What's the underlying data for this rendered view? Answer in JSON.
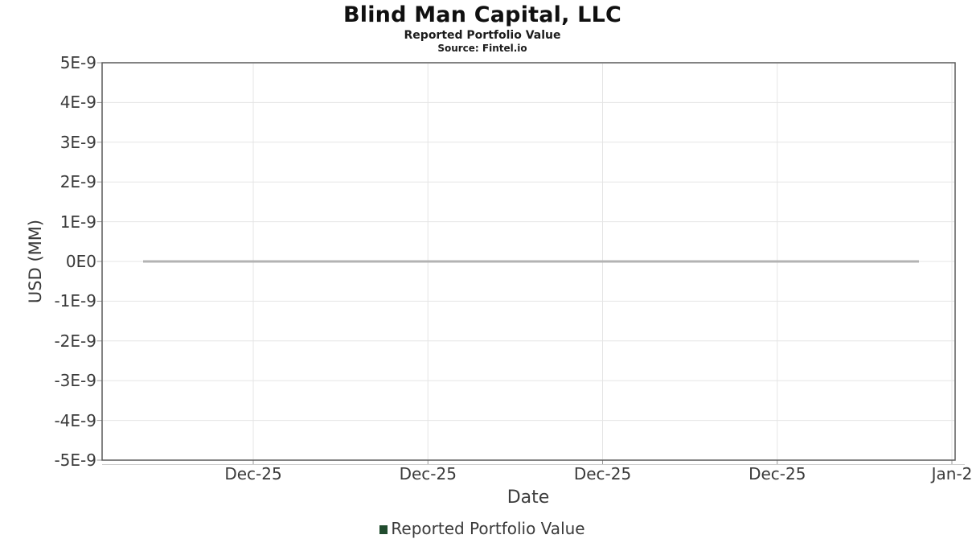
{
  "header": {
    "title": "Blind Man Capital, LLC",
    "subtitle": "Reported Portfolio Value",
    "source": "Source: Fintel.io"
  },
  "legend": {
    "label": "Reported Portfolio Value",
    "marker_color": "#214c2e"
  },
  "colors": {
    "grid": "#e5e5e5",
    "plot_border": "#5a5a5a",
    "tick": "#999999",
    "axis_line_light": "#cccccc",
    "axis_text": "#3a3a3a",
    "series_line": "#b3b3b3",
    "legend_green": "#214c2e"
  },
  "chart_data": {
    "type": "line",
    "title": "Blind Man Capital, LLC",
    "subtitle": "Reported Portfolio Value",
    "source_note": "Source: Fintel.io",
    "xlabel": "Date",
    "ylabel": "USD (MM)",
    "x_tick_labels": [
      "Dec-25",
      "Dec-25",
      "Dec-25",
      "Dec-25",
      "Jan-2"
    ],
    "y_tick_labels": [
      "5E-9",
      "4E-9",
      "3E-9",
      "2E-9",
      "1E-9",
      "0E0",
      "-1E-9",
      "-2E-9",
      "-3E-9",
      "-4E-9",
      "-5E-9"
    ],
    "ylim": [
      -5e-09,
      5e-09
    ],
    "grid": true,
    "legend_position": "bottom",
    "series": [
      {
        "name": "Reported Portfolio Value",
        "values": [
          0,
          0
        ],
        "note": "flat line at 0E0 across entire visible date range",
        "line_color": "#b3b3b3",
        "legend_marker_color": "#214c2e"
      }
    ]
  }
}
